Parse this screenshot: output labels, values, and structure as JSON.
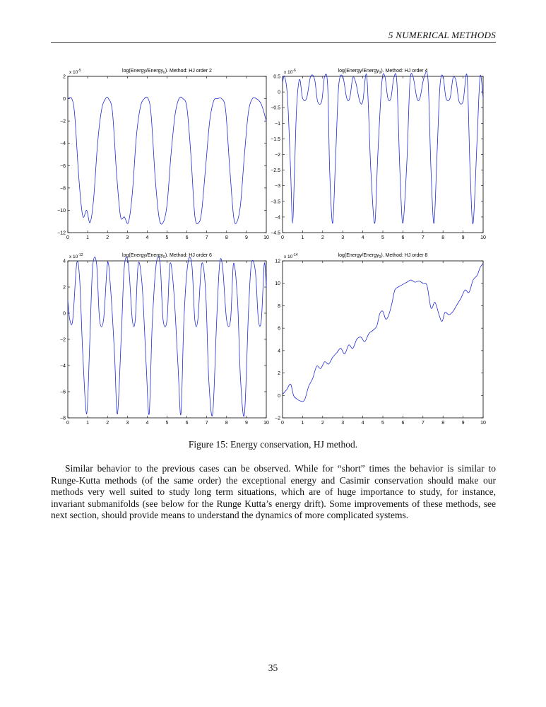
{
  "header": {
    "section": "5   NUMERICAL METHODS"
  },
  "figure": {
    "caption": "Figure 15: Energy conservation, HJ method."
  },
  "paragraph": "Similar behavior to the previous cases can be observed. While for “short” times the behavior is similar to Runge-Kutta methods (of the same order) the exceptional energy and Casimir conservation should make our methods very well suited to study long term situations, which are of huge importance to study, for instance, invariant submanifolds (see below for the Runge Kutta’s energy drift). Some improvements of these methods, see next section, should provide means to understand the dynamics of more complicated systems.",
  "page_number": "35",
  "colors": {
    "line": "#1f2bd6",
    "axis": "#000000"
  },
  "chart_data": [
    {
      "type": "line",
      "title": "log(Energy/Energy0). Method: HJ order 2",
      "exponent_label": "x 10^-5",
      "xlim": [
        0,
        10
      ],
      "ylim": [
        -12,
        2
      ],
      "xticks": [
        0,
        1,
        2,
        3,
        4,
        5,
        6,
        7,
        8,
        9,
        10
      ],
      "yticks": [
        -12,
        -10,
        -8,
        -6,
        -4,
        -2,
        0,
        2
      ],
      "xtick_labels": [
        "0",
        "1",
        "2",
        "3",
        "4",
        "5",
        "6",
        "7",
        "8",
        "9",
        "10"
      ],
      "ytick_labels": [
        "−12",
        "−10",
        "−8",
        "−6",
        "−4",
        "−2",
        "0",
        "2"
      ],
      "series": [
        {
          "x": [
            0,
            0.2,
            0.35,
            0.55,
            0.75,
            0.95,
            1.12,
            1.3,
            1.5,
            1.7,
            1.9,
            2.05,
            2.25,
            2.45,
            2.65,
            2.85,
            3.05,
            3.25,
            3.45,
            3.65,
            3.85,
            4.05,
            4.2,
            4.4,
            4.6,
            4.8,
            5.0,
            5.2,
            5.4,
            5.6,
            5.8,
            6.0,
            6.2,
            6.4,
            6.6,
            6.75,
            6.95,
            7.15,
            7.35,
            7.55,
            7.75,
            7.95,
            8.15,
            8.35,
            8.5,
            8.7,
            8.9,
            9.1,
            9.3,
            9.5,
            9.75,
            10.0
          ],
          "y": [
            0,
            0,
            -1.5,
            -7,
            -10.5,
            -10,
            -11.1,
            -9,
            -4,
            -1,
            0,
            0,
            -1.2,
            -6.5,
            -10.5,
            -10.6,
            -11.1,
            -8.5,
            -3.5,
            -0.8,
            0,
            0,
            -1.5,
            -7,
            -10.7,
            -11.1,
            -9.5,
            -5,
            -1.5,
            0,
            0,
            -0.8,
            -5,
            -10.5,
            -11.1,
            -10,
            -6,
            -2,
            -0.2,
            0,
            0,
            -1,
            -6,
            -10.5,
            -11.1,
            -9.5,
            -5,
            -1.2,
            0,
            0,
            -0.5,
            -2
          ]
        }
      ]
    },
    {
      "type": "line",
      "title": "log(Energy/Energy0). Method: HJ order 4",
      "exponent_label": "x 10^-6",
      "xlim": [
        0,
        10
      ],
      "ylim": [
        -4.5,
        0.5
      ],
      "xticks": [
        0,
        1,
        2,
        3,
        4,
        5,
        6,
        7,
        8,
        9,
        10
      ],
      "yticks": [
        -4.5,
        -4,
        -3.5,
        -3,
        -2.5,
        -2,
        -1.5,
        -1,
        -0.5,
        0,
        0.5
      ],
      "xtick_labels": [
        "0",
        "1",
        "2",
        "3",
        "4",
        "5",
        "6",
        "7",
        "8",
        "9",
        "10"
      ],
      "ytick_labels": [
        "−4.5",
        "−4",
        "−3.5",
        "−3",
        "−2.5",
        "−2",
        "−1.5",
        "−1",
        "−0.5",
        "0",
        "0.5"
      ],
      "series": [
        {
          "x": [
            0,
            0.1,
            0.25,
            0.4,
            0.5,
            0.6,
            0.7,
            0.85,
            1.0,
            1.2,
            1.4,
            1.6,
            1.75,
            1.95,
            2.1,
            2.25,
            2.35,
            2.5,
            2.65,
            2.8,
            3.0,
            3.2,
            3.35,
            3.5,
            3.65,
            3.85,
            4.0,
            4.2,
            4.4,
            4.6,
            4.75,
            4.95,
            5.1,
            5.25,
            5.4,
            5.55,
            5.7,
            5.85,
            6.0,
            6.2,
            6.35,
            6.5,
            6.7,
            6.85,
            7.05,
            7.25,
            7.4,
            7.55,
            7.7,
            7.85,
            8.0,
            8.15,
            8.35,
            8.5,
            8.65,
            8.8,
            9.0,
            9.2,
            9.35,
            9.5,
            9.7,
            9.85,
            10.0
          ],
          "y": [
            0.3,
            0.5,
            -0.2,
            -2.5,
            -4.2,
            -2.5,
            -0.5,
            0.4,
            -0.2,
            -0.2,
            0.5,
            0.4,
            -0.3,
            -0.3,
            0.5,
            0.2,
            -2.5,
            -4.2,
            -2.0,
            0.2,
            0.5,
            -0.2,
            -0.2,
            0.45,
            0.3,
            -0.3,
            -0.3,
            0.5,
            -2.5,
            -4.2,
            -2.0,
            0.3,
            0.5,
            -0.2,
            -0.2,
            0.45,
            0.3,
            -2.5,
            -4.2,
            -2.2,
            0.3,
            0.5,
            -0.2,
            -0.2,
            0.45,
            0.4,
            -2.5,
            -4.2,
            -2.0,
            0.2,
            0.5,
            -0.2,
            -0.2,
            0.45,
            0.35,
            -0.3,
            -0.3,
            0.5,
            -2.5,
            -4.2,
            -1.5,
            0.5,
            -0.2
          ]
        }
      ]
    },
    {
      "type": "line",
      "title": "log(Energy/Energy0). Method: HJ order 6",
      "exponent_label": "x 10^-12",
      "xlim": [
        0,
        10
      ],
      "ylim": [
        -8,
        4
      ],
      "xticks": [
        0,
        1,
        2,
        3,
        4,
        5,
        6,
        7,
        8,
        9,
        10
      ],
      "yticks": [
        -8,
        -6,
        -4,
        -2,
        0,
        2,
        4
      ],
      "xtick_labels": [
        "0",
        "1",
        "2",
        "3",
        "4",
        "5",
        "6",
        "7",
        "8",
        "9",
        "10"
      ],
      "ytick_labels": [
        "−8",
        "−6",
        "−4",
        "−2",
        "0",
        "2",
        "4"
      ],
      "series": [
        {
          "x": [
            0,
            0.1,
            0.25,
            0.45,
            0.6,
            0.75,
            0.95,
            1.1,
            1.25,
            1.45,
            1.6,
            1.8,
            2.0,
            2.15,
            2.35,
            2.5,
            2.7,
            2.85,
            3.05,
            3.25,
            3.4,
            3.55,
            3.75,
            3.95,
            4.1,
            4.25,
            4.45,
            4.65,
            4.8,
            5.0,
            5.15,
            5.35,
            5.55,
            5.7,
            5.85,
            6.05,
            6.25,
            6.4,
            6.55,
            6.75,
            6.95,
            7.1,
            7.3,
            7.5,
            7.65,
            7.8,
            8.0,
            8.2,
            8.35,
            8.55,
            8.7,
            8.9,
            9.1,
            9.25,
            9.45,
            9.6,
            9.75,
            9.9,
            10.0
          ],
          "y": [
            1,
            -0.5,
            -0.5,
            3.8,
            2.5,
            -3,
            -7.7,
            -2.5,
            3.5,
            3.8,
            -0.5,
            -0.5,
            3.8,
            2,
            -3,
            -7.7,
            -1.5,
            3.6,
            3.8,
            -0.5,
            -0.5,
            3.8,
            2,
            -4,
            -7.7,
            -1,
            3.7,
            3.8,
            -0.5,
            -0.5,
            3.8,
            1.5,
            -4,
            -7.7,
            -0.5,
            3.8,
            3.7,
            -0.5,
            -0.5,
            3.8,
            1.5,
            -5,
            -7.7,
            -0.5,
            3.8,
            3.5,
            -0.5,
            -0.5,
            3.8,
            1,
            -5,
            -7.7,
            0,
            3.8,
            3.2,
            -0.5,
            -0.5,
            3.8,
            2
          ]
        }
      ]
    },
    {
      "type": "line",
      "title": "log(Energy/Energy0). Method: HJ order 8",
      "exponent_label": "x 10^-14",
      "xlim": [
        0,
        10
      ],
      "ylim": [
        -2,
        12
      ],
      "xticks": [
        0,
        1,
        2,
        3,
        4,
        5,
        6,
        7,
        8,
        9,
        10
      ],
      "yticks": [
        -2,
        0,
        2,
        4,
        6,
        8,
        10,
        12
      ],
      "xtick_labels": [
        "0",
        "1",
        "2",
        "3",
        "4",
        "5",
        "6",
        "7",
        "8",
        "9",
        "10"
      ],
      "ytick_labels": [
        "−2",
        "0",
        "2",
        "4",
        "6",
        "8",
        "10",
        "12"
      ],
      "series": [
        {
          "x": [
            0,
            0.2,
            0.4,
            0.55,
            0.7,
            0.9,
            1.1,
            1.3,
            1.5,
            1.7,
            1.9,
            2.1,
            2.3,
            2.5,
            2.7,
            2.9,
            3.1,
            3.3,
            3.5,
            3.7,
            3.9,
            4.1,
            4.3,
            4.5,
            4.7,
            4.85,
            5.0,
            5.15,
            5.3,
            5.45,
            5.6,
            5.8,
            6.0,
            6.2,
            6.4,
            6.6,
            6.8,
            7.0,
            7.2,
            7.4,
            7.6,
            7.8,
            7.95,
            8.1,
            8.3,
            8.5,
            8.7,
            8.9,
            9.1,
            9.3,
            9.5,
            9.7,
            9.85,
            10.0
          ],
          "y": [
            0.1,
            0.5,
            1,
            0,
            -0.3,
            -0.5,
            -0.4,
            0.8,
            1.5,
            2.6,
            2.4,
            3,
            2.8,
            3.4,
            3.8,
            4.2,
            3.7,
            4.5,
            4.2,
            5,
            5.2,
            4.8,
            5.5,
            5.8,
            6.2,
            7.3,
            7.5,
            6.8,
            7.2,
            8.2,
            9.4,
            9.7,
            9.9,
            10.1,
            10.3,
            10.1,
            10.2,
            10.0,
            9.8,
            7.8,
            8.3,
            7.2,
            6.6,
            7.4,
            7.2,
            7.5,
            8.1,
            8.7,
            9.4,
            9.2,
            10.3,
            10.7,
            11.4,
            11.8
          ]
        }
      ]
    }
  ]
}
